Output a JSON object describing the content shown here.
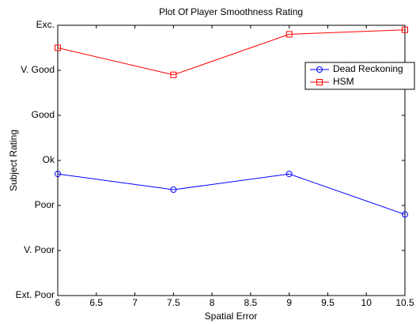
{
  "chart_data": {
    "type": "line",
    "title": "Plot Of Player Smoothness Rating",
    "xlabel": "Spatial Error",
    "ylabel": "Subject Rating",
    "x": [
      6,
      7.5,
      9,
      10.5
    ],
    "series": [
      {
        "name": "Dead Reckoning",
        "color": "#0000ff",
        "marker": "circle",
        "values": [
          3.7,
          3.35,
          3.7,
          2.8
        ]
      },
      {
        "name": "HSM",
        "color": "#ff0000",
        "marker": "square",
        "values": [
          6.5,
          5.9,
          6.8,
          6.9
        ]
      }
    ],
    "xlim": [
      6,
      10.5
    ],
    "xticks": [
      6,
      6.5,
      7,
      7.5,
      8,
      8.5,
      9,
      9.5,
      10,
      10.5
    ],
    "ylim": [
      1,
      7
    ],
    "yticks": [
      {
        "value": 1,
        "label": "Ext. Poor"
      },
      {
        "value": 2,
        "label": "V. Poor"
      },
      {
        "value": 3,
        "label": "Poor"
      },
      {
        "value": 4,
        "label": "Ok"
      },
      {
        "value": 5,
        "label": "Good"
      },
      {
        "value": 6,
        "label": "V. Good"
      },
      {
        "value": 7,
        "label": "Exc."
      }
    ],
    "legend": "upper right"
  }
}
